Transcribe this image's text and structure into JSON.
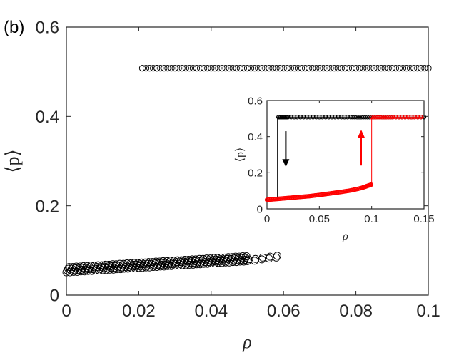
{
  "panel_label": "(b)",
  "chart_data": [
    {
      "type": "scatter",
      "xlabel": "ρ",
      "ylabel": "⟨p⟩",
      "xlim": [
        0,
        0.1
      ],
      "ylim": [
        0,
        0.6
      ],
      "xticks": [
        "0",
        "0.02",
        "0.04",
        "0.06",
        "0.08",
        "0.1"
      ],
      "yticks": [
        "0",
        "0.2",
        "0.4",
        "0.6"
      ],
      "grid": false,
      "marker": "open-circle",
      "series": [
        {
          "color": "#000000",
          "x": [
            0.0,
            0.002,
            0.004,
            0.006,
            0.008,
            0.01,
            0.012,
            0.014,
            0.016,
            0.018,
            0.02,
            0.022,
            0.024,
            0.026,
            0.028,
            0.03,
            0.032,
            0.034,
            0.036,
            0.038,
            0.04,
            0.042,
            0.044,
            0.046,
            0.048,
            0.05,
            0.052,
            0.054,
            0.056,
            0.058
          ],
          "y": [
            0.057,
            0.058,
            0.059,
            0.06,
            0.061,
            0.062,
            0.063,
            0.064,
            0.065,
            0.066,
            0.067,
            0.068,
            0.069,
            0.07,
            0.071,
            0.072,
            0.073,
            0.074,
            0.075,
            0.076,
            0.077,
            0.078,
            0.079,
            0.08,
            0.081,
            0.082,
            0.083,
            0.086,
            0.088,
            0.09
          ]
        },
        {
          "color": "#000000",
          "x": [
            0.021,
            0.025,
            0.03,
            0.035,
            0.04,
            0.045,
            0.05,
            0.055,
            0.06,
            0.065,
            0.07,
            0.075,
            0.08,
            0.085,
            0.09,
            0.095,
            0.1
          ],
          "y": [
            0.508,
            0.508,
            0.508,
            0.508,
            0.508,
            0.508,
            0.508,
            0.508,
            0.508,
            0.508,
            0.508,
            0.508,
            0.508,
            0.508,
            0.508,
            0.508,
            0.508
          ]
        }
      ]
    },
    {
      "type": "line",
      "xlabel": "ρ",
      "ylabel": "⟨p⟩",
      "xlim": [
        0,
        0.15
      ],
      "ylim": [
        0,
        0.6
      ],
      "xticks": [
        "0",
        "0.05",
        "0.1",
        "0.15"
      ],
      "yticks": [
        "0",
        "0.2",
        "0.4",
        "0.6"
      ],
      "grid": false,
      "series": [
        {
          "color": "#000000",
          "direction": "decreasing ρ",
          "x": [
            0.15,
            0.12,
            0.1,
            0.08,
            0.05,
            0.02,
            0.01,
            0.01
          ],
          "y": [
            0.508,
            0.508,
            0.508,
            0.508,
            0.508,
            0.508,
            0.508,
            0.05
          ]
        },
        {
          "color": "#ff0000",
          "direction": "increasing ρ",
          "x": [
            0.0,
            0.01,
            0.02,
            0.03,
            0.04,
            0.05,
            0.06,
            0.07,
            0.08,
            0.09,
            0.095,
            0.1,
            0.1,
            0.12,
            0.15
          ],
          "y": [
            0.05,
            0.055,
            0.06,
            0.065,
            0.07,
            0.077,
            0.085,
            0.093,
            0.102,
            0.115,
            0.125,
            0.135,
            0.508,
            0.508,
            0.508
          ]
        }
      ],
      "annotations": [
        {
          "type": "arrow",
          "direction": "down",
          "color": "#000000",
          "x": 0.018,
          "y_from": 0.43,
          "y_to": 0.24
        },
        {
          "type": "arrow",
          "direction": "up",
          "color": "#ff0000",
          "x": 0.09,
          "y_from": 0.24,
          "y_to": 0.43
        }
      ]
    }
  ]
}
